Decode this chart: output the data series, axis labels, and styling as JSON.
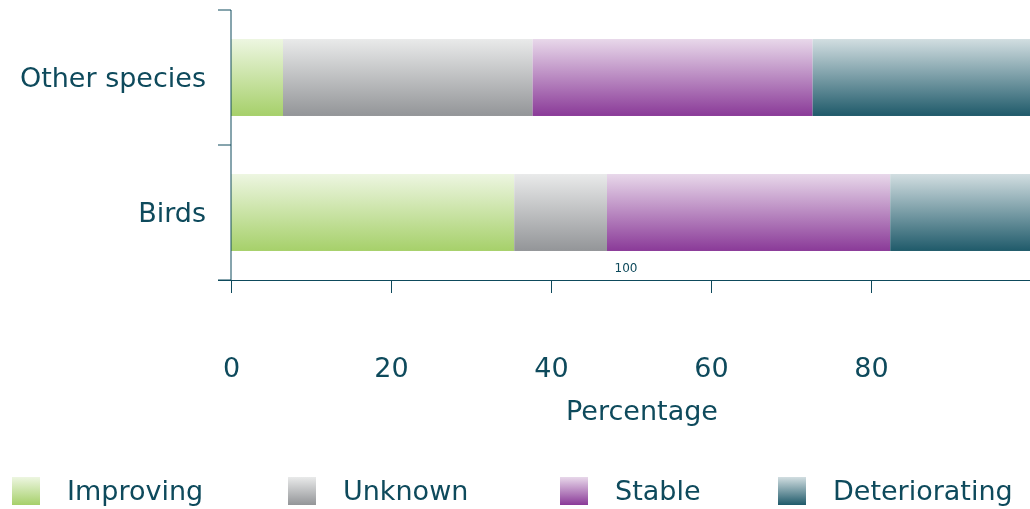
{
  "chart_data": {
    "type": "bar",
    "orientation": "horizontal",
    "stacked": true,
    "categories": [
      "Other species",
      "Birds"
    ],
    "series": [
      {
        "name": "Improving",
        "color": "#a6d06a",
        "values": [
          6.5,
          35.4
        ]
      },
      {
        "name": "Unknown",
        "color": "#939598",
        "values": [
          31.2,
          11.6
        ]
      },
      {
        "name": "Stable",
        "color": "#8a3a98",
        "values": [
          35,
          35.4
        ]
      },
      {
        "name": "Deteriorating",
        "color": "#1f5a6a",
        "values": [
          27.3,
          17.6
        ]
      }
    ],
    "xlim": [
      0,
      100
    ],
    "xticks": [
      0,
      20,
      40,
      60,
      80,
      {
        "value": 100,
        "label": null
      }
    ],
    "xlabel": "Percentage",
    "annotations": [
      "100"
    ],
    "legend": "bottom",
    "grid": false
  }
}
